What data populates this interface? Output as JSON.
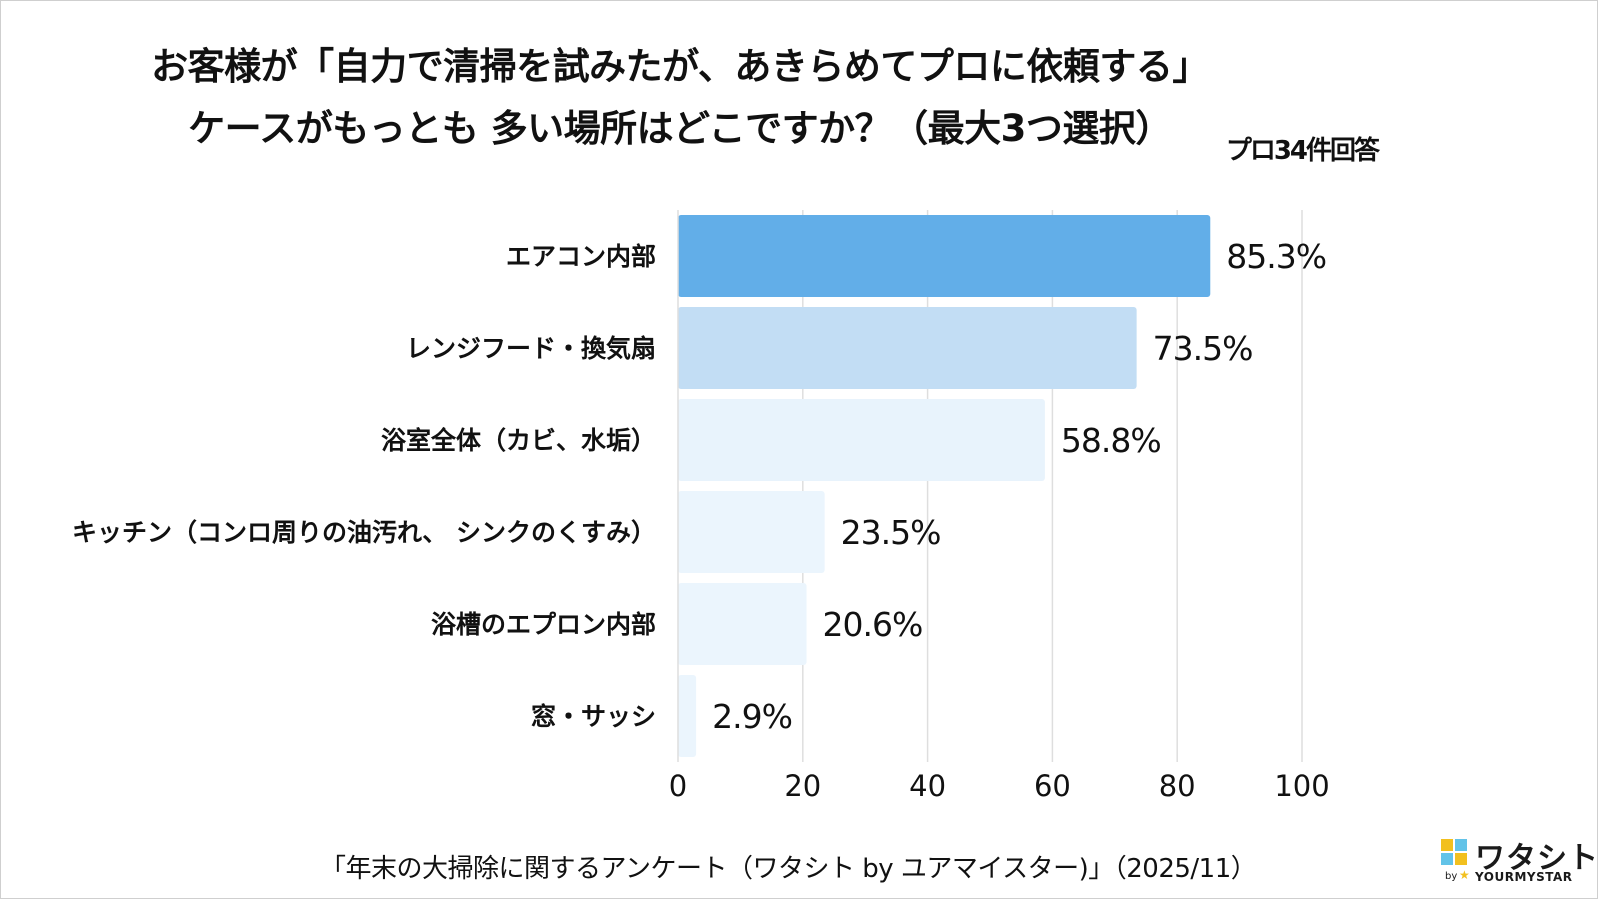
{
  "chart_data": {
    "type": "bar",
    "orientation": "horizontal",
    "title_lines": [
      "お客様が「自力で清掃を試みたが、あきらめてプロに依頼する」",
      "ケースがもっとも 多い場所はどこですか？（最大3つ選択）"
    ],
    "note": "プロ34件回答",
    "categories": [
      "エアコン内部",
      "レンジフード・換気扇",
      "浴室全体（カビ、水垢）",
      "キッチン（コンロ周りの油汚れ、 シンクのくすみ）",
      "浴槽のエプロン内部",
      "窓・サッシ"
    ],
    "values": [
      85.3,
      73.5,
      58.8,
      23.5,
      20.6,
      2.9
    ],
    "value_labels": [
      "85.3%",
      "73.5%",
      "58.8%",
      "23.5%",
      "20.6%",
      "2.9%"
    ],
    "xlim": [
      0,
      100
    ],
    "xticks": [
      "0",
      "20",
      "40",
      "60",
      "80",
      "100"
    ],
    "grid": "vertical",
    "colors": [
      "#62aee8",
      "#c2ddf4",
      "#e8f3fc",
      "#ebf5fd",
      "#ebf5fd",
      "#ebf5fd"
    ]
  },
  "footer": "「年末の大掃除に関するアンケート（ワタシト by ユアマイスター)」（2025/11）",
  "logo": {
    "name": "ワタシト",
    "by": "by",
    "sub": "YOURMYSTAR",
    "icon": "watashito-logo-mark",
    "colors": [
      "#f2c01e",
      "#62c3e8"
    ]
  }
}
